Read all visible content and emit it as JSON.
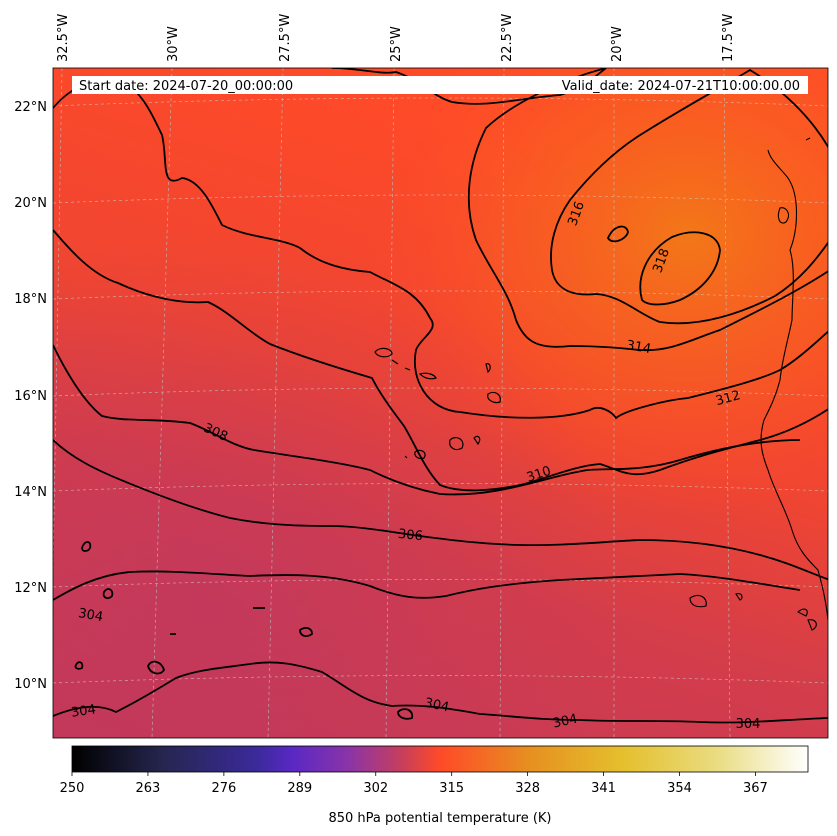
{
  "map": {
    "start_label": "Start date: 2024-07-20_00:00:00",
    "valid_label": "Valid_date: 2024-07-21T10:00:00.00",
    "longitude_labels": [
      "32.5°W",
      "30°W",
      "27.5°W",
      "25°W",
      "22.5°W",
      "20°W",
      "17.5°W"
    ],
    "latitude_labels": [
      "22°N",
      "20°N",
      "18°N",
      "16°N",
      "14°N",
      "12°N",
      "10°N"
    ],
    "contour_labels": [
      "318",
      "316",
      "314",
      "312",
      "310",
      "308",
      "306",
      "304",
      "304",
      "304",
      "304",
      "304"
    ],
    "gridlines": true,
    "colormap": "CMRmap",
    "colors": {
      "field_warm": "#ff4a2a",
      "field_orange": "#f0711a",
      "field_cool": "#c23a58",
      "contour": "#000000",
      "coastline": "#000000"
    }
  },
  "colorbar": {
    "label": "850 hPa potential temperature (K)",
    "min": 250,
    "max": 376,
    "tick_labels": [
      "250",
      "263",
      "276",
      "289",
      "302",
      "315",
      "328",
      "341",
      "354",
      "367"
    ]
  }
}
